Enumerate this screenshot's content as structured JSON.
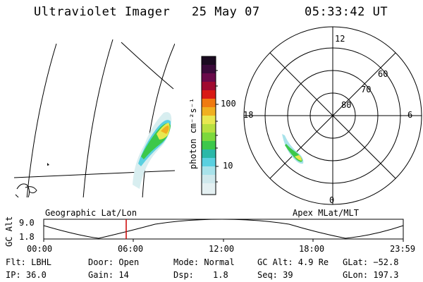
{
  "header": {
    "instrument": "Ultraviolet Imager",
    "date": "25 May 07",
    "time": "05:33:42 UT"
  },
  "colorbar": {
    "label": "photon cm⁻²s⁻¹",
    "ticks": [
      "100",
      "10"
    ],
    "colors": [
      "#1a0a20",
      "#3a0a3a",
      "#5a0a5a",
      "#8a0a45",
      "#c00a20",
      "#e23a10",
      "#f07a10",
      "#f0b020",
      "#e8e850",
      "#9ad838",
      "#3cc84a",
      "#2ab8a8",
      "#5ad0e0",
      "#a8e2ea",
      "#d8eef0"
    ]
  },
  "geo_panel": {
    "label": "Geographic Lat/Lon"
  },
  "polar_panel": {
    "label": "Apex MLat/MLT",
    "hour_labels": [
      "12",
      "18",
      "6",
      "0"
    ],
    "lat_labels": [
      "60",
      "70",
      "80"
    ]
  },
  "alt_plot": {
    "ylabel": "GC Alt",
    "yticks": [
      "9.0",
      "1.8"
    ],
    "xticks": [
      "00:00",
      "06:00",
      "12:00",
      "18:00",
      "23:59"
    ],
    "marker_color": "#cc0000"
  },
  "info": {
    "row1": {
      "flt": "Flt: LBHL",
      "door": "Door: Open",
      "mode": "Mode: Normal",
      "gcalt": "GC Alt: 4.9 Re",
      "glat": "GLat: −52.8"
    },
    "row2": {
      "ip": "IP: 36.0",
      "gain": "Gain: 14",
      "dsp_label": "Dsp:",
      "dsp_value": "1.8",
      "seq": "Seq: 39",
      "glon": "GLon: 197.3"
    }
  }
}
